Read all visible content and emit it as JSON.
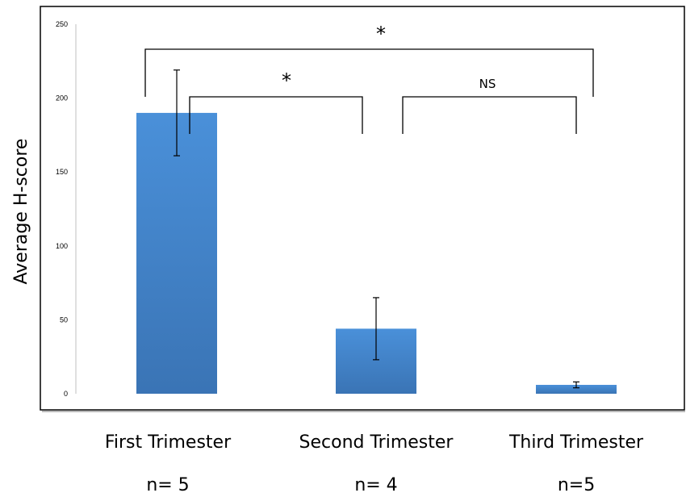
{
  "chart_data": {
    "type": "bar",
    "ylabel": "Average H-score",
    "ylim": [
      0,
      250
    ],
    "yticks": [
      0,
      50,
      100,
      150,
      200,
      250
    ],
    "grid": false,
    "categories": [
      "First Trimester",
      "Second Trimester",
      "Third Trimester"
    ],
    "sample_sizes": [
      "n= 5",
      "n= 4",
      "n=5"
    ],
    "values": [
      190,
      44,
      6
    ],
    "error": [
      29,
      21,
      2
    ],
    "bar_color": "#4a8fd6",
    "significance": [
      {
        "from": "First Trimester",
        "to": "Third Trimester",
        "label": "*"
      },
      {
        "from": "First Trimester",
        "to": "Second Trimester",
        "label": "*"
      },
      {
        "from": "Second Trimester",
        "to": "Third Trimester",
        "label": "NS"
      }
    ]
  }
}
